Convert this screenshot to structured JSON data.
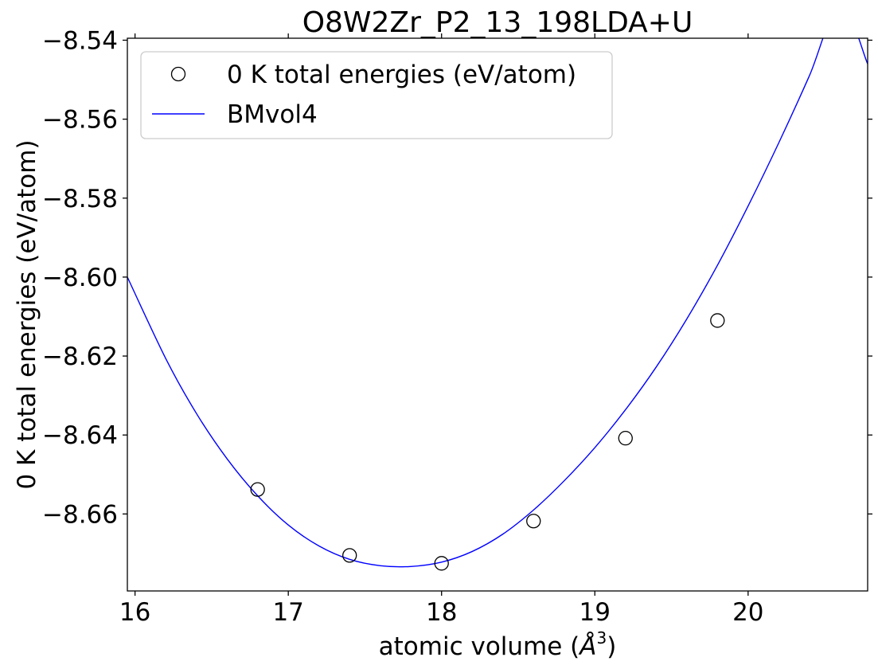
{
  "chart_data": {
    "type": "scatter",
    "title": "O8W2Zr_P2_13_198LDA+U",
    "xlabel": "atomic volume (",
    "xlabel_unit": "Å",
    "xlabel_sup": "3",
    "xlabel_close": ")",
    "ylabel": "0 K total energies (eV/atom)",
    "xlim": [
      15.95,
      20.78
    ],
    "ylim": [
      -8.6795,
      -8.5395
    ],
    "x_ticks": [
      16,
      17,
      18,
      19,
      20
    ],
    "x_tick_labels": [
      "16",
      "17",
      "18",
      "19",
      "20"
    ],
    "y_ticks": [
      -8.66,
      -8.64,
      -8.62,
      -8.6,
      -8.58,
      -8.56,
      -8.54
    ],
    "y_tick_labels": [
      "−8.66",
      "−8.64",
      "−8.62",
      "−8.60",
      "−8.58",
      "−8.56",
      "−8.54"
    ],
    "legend_position": "top-left",
    "grid": false,
    "series": [
      {
        "name": "0 K total energies (eV/atom)",
        "kind": "markers",
        "marker": "open-circle",
        "color": "#000000",
        "x": [
          16.8,
          17.4,
          18.0,
          18.6,
          19.2,
          19.8
        ],
        "y": [
          -8.6538,
          -8.6705,
          -8.6725,
          -8.6618,
          -8.6408,
          -8.611
        ]
      },
      {
        "name": "BMvol4",
        "kind": "line",
        "color": "#0000ff",
        "x": [
          15.95,
          16.2,
          16.4,
          16.6,
          16.8,
          17.0,
          17.2,
          17.4,
          17.6,
          17.8,
          18.0,
          18.2,
          18.4,
          18.6,
          18.8,
          19.0,
          19.2,
          19.4,
          19.6,
          19.8,
          20.0,
          20.2,
          20.4,
          20.6,
          20.78
        ],
        "y": [
          -8.6,
          -8.6206,
          -8.6345,
          -8.646,
          -8.6554,
          -8.6628,
          -8.6681,
          -8.6715,
          -8.6731,
          -8.6733,
          -8.6722,
          -8.6695,
          -8.6651,
          -8.659,
          -8.6516,
          -8.6432,
          -8.6336,
          -8.6228,
          -8.6106,
          -8.597,
          -8.582,
          -8.566,
          -8.549,
          -8.531,
          -8.546
        ]
      }
    ]
  }
}
